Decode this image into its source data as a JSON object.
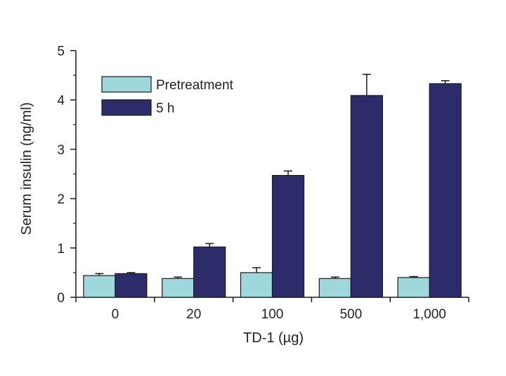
{
  "chart_data": {
    "type": "bar",
    "title": "",
    "xlabel": "TD-1 (µg)",
    "ylabel": "Serum insulin (ng/ml)",
    "categories": [
      "0",
      "20",
      "100",
      "500",
      "1,000"
    ],
    "ylim": [
      0,
      5
    ],
    "yticks": [
      0,
      1,
      2,
      3,
      4,
      5
    ],
    "ytick_labels": [
      "0",
      "1",
      "2",
      "3",
      "4",
      "5"
    ],
    "minor_ytick_step": 0.5,
    "grid": false,
    "legend_position": "top-left",
    "series": [
      {
        "name": "Pretreatment",
        "color": "#9fd8dc",
        "values": [
          0.44,
          0.38,
          0.5,
          0.38,
          0.4
        ],
        "errors": [
          0.04,
          0.03,
          0.1,
          0.03,
          0.02
        ]
      },
      {
        "name": "5 h",
        "color": "#2c2c6a",
        "values": [
          0.48,
          1.02,
          2.47,
          4.09,
          4.33
        ],
        "errors": [
          0.02,
          0.07,
          0.09,
          0.43,
          0.06
        ]
      }
    ]
  }
}
